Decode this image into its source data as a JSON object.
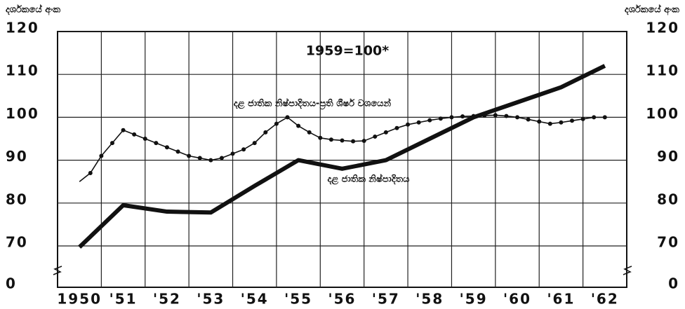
{
  "chart_data": {
    "type": "line",
    "y_axis_label": "දර්ශකයේ අංක",
    "y2_axis_label": "දර්ශකයේ අංක",
    "annotations": [
      "1959=100*",
      "දළ ජාතික නිෂ්පාදිතය-ප්‍රති ශීර්ෂ වශයෙන්",
      "දළ ජාතික නිෂ්පාදිතය"
    ],
    "xlim": [
      1949.5,
      1962.5
    ],
    "xticks": [
      {
        "value": 1950,
        "label": "1950"
      },
      {
        "value": 1951,
        "label": "'51"
      },
      {
        "value": 1952,
        "label": "'52"
      },
      {
        "value": 1953,
        "label": "'53"
      },
      {
        "value": 1954,
        "label": "'54"
      },
      {
        "value": 1955,
        "label": "'55"
      },
      {
        "value": 1956,
        "label": "'56"
      },
      {
        "value": 1957,
        "label": "'57"
      },
      {
        "value": 1958,
        "label": "'58"
      },
      {
        "value": 1959,
        "label": "'59"
      },
      {
        "value": 1960,
        "label": "'60"
      },
      {
        "value": 1961,
        "label": "'61"
      },
      {
        "value": 1962,
        "label": "'62"
      }
    ],
    "ylim": [
      0,
      120
    ],
    "yticks": [
      0,
      70,
      80,
      90,
      100,
      110,
      120
    ],
    "y2lim": [
      0,
      120
    ],
    "y2ticks": [
      0,
      70,
      80,
      90,
      100,
      110,
      120
    ],
    "y_break": [
      0,
      70
    ],
    "grid": true,
    "series": [
      {
        "name": "දළ ජාතික නිෂ්පාදිතය-ප්‍රති ශීර්ෂ වශයෙන්",
        "color": "#111111",
        "style": "dotted",
        "x": [
          1950,
          1950.25,
          1950.5,
          1950.75,
          1951,
          1951.25,
          1951.5,
          1951.75,
          1952,
          1952.25,
          1952.5,
          1952.75,
          1953,
          1953.25,
          1953.5,
          1953.75,
          1954,
          1954.25,
          1954.5,
          1954.75,
          1955,
          1955.25,
          1955.5,
          1955.75,
          1956,
          1956.25,
          1956.5,
          1956.75,
          1957,
          1957.25,
          1957.5,
          1957.75,
          1958,
          1958.25,
          1958.5,
          1958.75,
          1959,
          1959.25,
          1959.5,
          1959.75,
          1960,
          1960.25,
          1960.5,
          1960.75,
          1961,
          1961.25,
          1961.5,
          1961.75,
          1962
        ],
        "values": [
          85,
          87,
          91,
          94,
          97,
          96,
          95,
          94,
          93,
          92,
          91,
          90.5,
          90,
          90.5,
          91.5,
          92.5,
          94,
          96.5,
          98.5,
          100,
          98,
          96.5,
          95.2,
          94.8,
          94.6,
          94.4,
          94.5,
          95.5,
          96.5,
          97.5,
          98.3,
          98.8,
          99.3,
          99.7,
          100,
          100.2,
          100.3,
          100.4,
          100.5,
          100.3,
          100,
          99.5,
          99,
          98.5,
          98.8,
          99.2,
          99.6,
          100,
          100
        ]
      },
      {
        "name": "දළ ජාතික නිෂ්පාදිතය",
        "color": "#111111",
        "style": "thick",
        "x": [
          1950,
          1951,
          1952,
          1953,
          1954,
          1955,
          1956,
          1957,
          1958,
          1959,
          1960,
          1961,
          1962
        ],
        "values": [
          68,
          79.5,
          78,
          77.8,
          84,
          90,
          88,
          90,
          95,
          100,
          103.5,
          107,
          112
        ]
      }
    ]
  }
}
